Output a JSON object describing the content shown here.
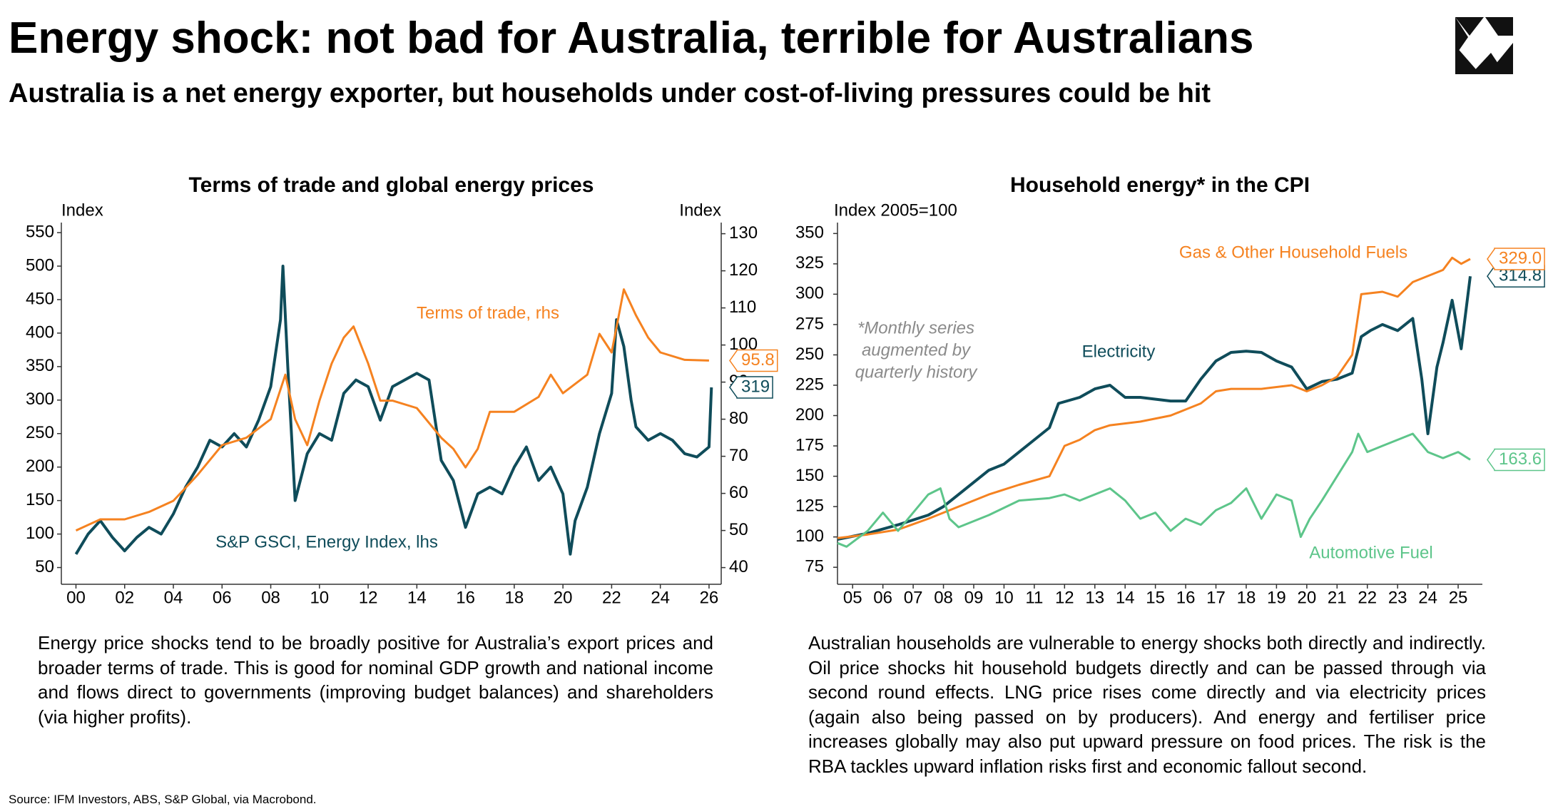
{
  "title": "Energy shock: not bad for Australia, terrible for Australians",
  "subtitle": "Australia is a net energy exporter, but households under cost-of-living pressures could be hit",
  "chart_data": [
    {
      "type": "line",
      "title": "Terms of trade and global energy prices",
      "y_label": "Index",
      "y2_label": "Index",
      "xlim": [
        1999.4,
        2026.5
      ],
      "xticks": [
        {
          "value": 2000,
          "label": "00"
        },
        {
          "value": 2002,
          "label": "02"
        },
        {
          "value": 2004,
          "label": "04"
        },
        {
          "value": 2006,
          "label": "06"
        },
        {
          "value": 2008,
          "label": "08"
        },
        {
          "value": 2010,
          "label": "10"
        },
        {
          "value": 2012,
          "label": "12"
        },
        {
          "value": 2014,
          "label": "14"
        },
        {
          "value": 2016,
          "label": "16"
        },
        {
          "value": 2018,
          "label": "18"
        },
        {
          "value": 2020,
          "label": "20"
        },
        {
          "value": 2022,
          "label": "22"
        },
        {
          "value": 2024,
          "label": "24"
        },
        {
          "value": 2026,
          "label": "26"
        }
      ],
      "ylim": [
        25,
        565
      ],
      "yticks": [
        50,
        100,
        150,
        200,
        250,
        300,
        350,
        400,
        450,
        500,
        550
      ],
      "y2lim": [
        35.5,
        133
      ],
      "y2ticks": [
        40,
        50,
        60,
        70,
        80,
        90,
        100,
        110,
        120,
        130
      ],
      "series": [
        {
          "name": "S&P GSCI, Energy Index, lhs",
          "color": "#0f4c5a",
          "x": [
            2000,
            2000.5,
            2001,
            2001.5,
            2002,
            2002.5,
            2003,
            2003.5,
            2004,
            2004.5,
            2005,
            2005.5,
            2006,
            2006.5,
            2007,
            2007.5,
            2008,
            2008.4,
            2008.5,
            2008.7,
            2009,
            2009.5,
            2010,
            2010.5,
            2011,
            2011.5,
            2012,
            2012.5,
            2013,
            2013.5,
            2014,
            2014.5,
            2015,
            2015.5,
            2016,
            2016.5,
            2017,
            2017.5,
            2018,
            2018.5,
            2019,
            2019.5,
            2020,
            2020.3,
            2020.5,
            2021,
            2021.5,
            2022,
            2022.2,
            2022.5,
            2022.8,
            2023,
            2023.5,
            2024,
            2024.5,
            2025,
            2025.5,
            2026,
            2026.1
          ],
          "values": [
            70,
            100,
            120,
            95,
            75,
            95,
            110,
            100,
            130,
            170,
            200,
            240,
            230,
            250,
            230,
            270,
            320,
            420,
            500,
            350,
            150,
            220,
            250,
            240,
            310,
            330,
            320,
            270,
            320,
            330,
            340,
            330,
            210,
            180,
            110,
            160,
            170,
            160,
            200,
            230,
            180,
            200,
            160,
            70,
            120,
            170,
            250,
            310,
            420,
            380,
            300,
            260,
            240,
            250,
            240,
            220,
            215,
            230,
            319
          ]
        },
        {
          "name": "Terms of trade, rhs",
          "color": "#f58220",
          "axis": "y2",
          "x": [
            2000,
            2001,
            2002,
            2003,
            2004,
            2005,
            2006,
            2007,
            2008,
            2008.6,
            2009,
            2009.5,
            2010,
            2010.5,
            2011,
            2011.4,
            2012,
            2012.5,
            2013,
            2014,
            2015,
            2015.5,
            2016,
            2016.5,
            2017,
            2018,
            2019,
            2019.5,
            2020,
            2021,
            2021.5,
            2022,
            2022.5,
            2023,
            2023.5,
            2024,
            2025,
            2026
          ],
          "values": [
            50,
            53,
            53,
            55,
            58,
            65,
            73,
            75,
            80,
            92,
            80,
            73,
            85,
            95,
            102,
            105,
            95,
            85,
            85,
            83,
            75,
            72,
            67,
            72,
            82,
            82,
            86,
            92,
            87,
            92,
            103,
            98,
            115,
            108,
            102,
            98,
            96,
            95.8
          ]
        }
      ]
    },
    {
      "type": "line",
      "title": "Household energy* in the CPI",
      "y_label": "Index 2005=100",
      "note": [
        "*Monthly series",
        "augmented by",
        "quarterly history"
      ],
      "xlim": [
        2005,
        2026.3
      ],
      "xticks": [
        {
          "value": 2005.5,
          "label": "05"
        },
        {
          "value": 2006.5,
          "label": "06"
        },
        {
          "value": 2007.5,
          "label": "07"
        },
        {
          "value": 2008.5,
          "label": "08"
        },
        {
          "value": 2009.5,
          "label": "09"
        },
        {
          "value": 2010.5,
          "label": "10"
        },
        {
          "value": 2011.5,
          "label": "11"
        },
        {
          "value": 2012.5,
          "label": "12"
        },
        {
          "value": 2013.5,
          "label": "13"
        },
        {
          "value": 2014.5,
          "label": "14"
        },
        {
          "value": 2015.5,
          "label": "15"
        },
        {
          "value": 2016.5,
          "label": "16"
        },
        {
          "value": 2017.5,
          "label": "17"
        },
        {
          "value": 2018.5,
          "label": "18"
        },
        {
          "value": 2019.5,
          "label": "19"
        },
        {
          "value": 2020.5,
          "label": "20"
        },
        {
          "value": 2021.5,
          "label": "21"
        },
        {
          "value": 2022.5,
          "label": "22"
        },
        {
          "value": 2023.5,
          "label": "23"
        },
        {
          "value": 2024.5,
          "label": "24"
        },
        {
          "value": 2025.5,
          "label": "25"
        }
      ],
      "ylim": [
        61,
        359
      ],
      "yticks": [
        75,
        100,
        125,
        150,
        175,
        200,
        225,
        250,
        275,
        300,
        325,
        350
      ],
      "series": [
        {
          "name": "Electricity",
          "color": "#0f4c5a",
          "x": [
            2005,
            2006,
            2007,
            2008,
            2008.5,
            2009,
            2009.5,
            2010,
            2010.5,
            2011,
            2011.5,
            2012,
            2012.3,
            2013,
            2013.5,
            2014,
            2014.5,
            2015,
            2016,
            2016.5,
            2017,
            2017.5,
            2018,
            2018.5,
            2019,
            2019.5,
            2020,
            2020.5,
            2021,
            2021.5,
            2022,
            2022.3,
            2022.6,
            2023,
            2023.5,
            2024,
            2024.3,
            2024.5,
            2024.8,
            2025,
            2025.3,
            2025.6,
            2025.9
          ],
          "values": [
            98,
            103,
            110,
            118,
            125,
            135,
            145,
            155,
            160,
            170,
            180,
            190,
            210,
            215,
            222,
            225,
            215,
            215,
            212,
            212,
            230,
            245,
            252,
            253,
            252,
            245,
            240,
            222,
            228,
            230,
            235,
            265,
            270,
            275,
            270,
            280,
            230,
            185,
            240,
            260,
            295,
            255,
            314.8
          ]
        },
        {
          "name": "Gas & Other Household Fuels",
          "color": "#f58220",
          "x": [
            2005,
            2006,
            2007,
            2008,
            2009,
            2010,
            2011,
            2012,
            2012.5,
            2013,
            2013.5,
            2014,
            2015,
            2016,
            2016.5,
            2017,
            2017.5,
            2018,
            2019,
            2020,
            2020.5,
            2021,
            2021.5,
            2022,
            2022.3,
            2023,
            2023.5,
            2024,
            2024.5,
            2025,
            2025.3,
            2025.6,
            2025.9
          ],
          "values": [
            99,
            102,
            106,
            115,
            125,
            135,
            143,
            150,
            175,
            180,
            188,
            192,
            195,
            200,
            205,
            210,
            220,
            222,
            222,
            225,
            220,
            225,
            232,
            250,
            300,
            302,
            298,
            310,
            315,
            320,
            330,
            325,
            329
          ],
          "value_labels": [
            null,
            null,
            null,
            null,
            null,
            null,
            null,
            null,
            null,
            null,
            null,
            null,
            null,
            null,
            null,
            null,
            null,
            null,
            null,
            null,
            null,
            null,
            null,
            null,
            null,
            null,
            null,
            null,
            null,
            null,
            null,
            null,
            "329.0"
          ]
        },
        {
          "name": "Automotive Fuel",
          "color": "#5dc58a",
          "x": [
            2005,
            2005.3,
            2006,
            2006.5,
            2007,
            2007.5,
            2008,
            2008.4,
            2008.7,
            2009,
            2010,
            2011,
            2012,
            2012.5,
            2013,
            2014,
            2014.5,
            2015,
            2015.5,
            2016,
            2016.5,
            2017,
            2017.5,
            2018,
            2018.5,
            2019,
            2019.5,
            2020,
            2020.3,
            2020.6,
            2021,
            2021.5,
            2022,
            2022.2,
            2022.5,
            2023,
            2023.5,
            2024,
            2024.5,
            2025,
            2025.5,
            2025.9
          ],
          "values": [
            95,
            92,
            105,
            120,
            105,
            120,
            135,
            140,
            115,
            108,
            118,
            130,
            132,
            135,
            130,
            140,
            130,
            115,
            120,
            105,
            115,
            110,
            122,
            128,
            140,
            115,
            135,
            130,
            100,
            115,
            130,
            150,
            170,
            185,
            170,
            175,
            180,
            185,
            170,
            165,
            170,
            163.6
          ]
        }
      ]
    }
  ],
  "notes": [
    "Energy price shocks tend to be broadly positive for Australia’s export prices and broader terms of trade. This is good for nominal GDP growth and national income and flows direct to governments (improving budget balances) and shareholders (via higher profits).",
    "Australian households are vulnerable to energy shocks both directly and indirectly. Oil price shocks hit household budgets directly and can be passed through via second round effects. LNG price rises come directly and via electricity prices (again also being passed on by producers). And energy and fertiliser price increases globally may also put upward pressure on food prices. The risk is the RBA tackles upward inflation risks first and economic fallout second."
  ],
  "source": "Source: IFM Investors, ABS, S&P Global, via Macrobond."
}
